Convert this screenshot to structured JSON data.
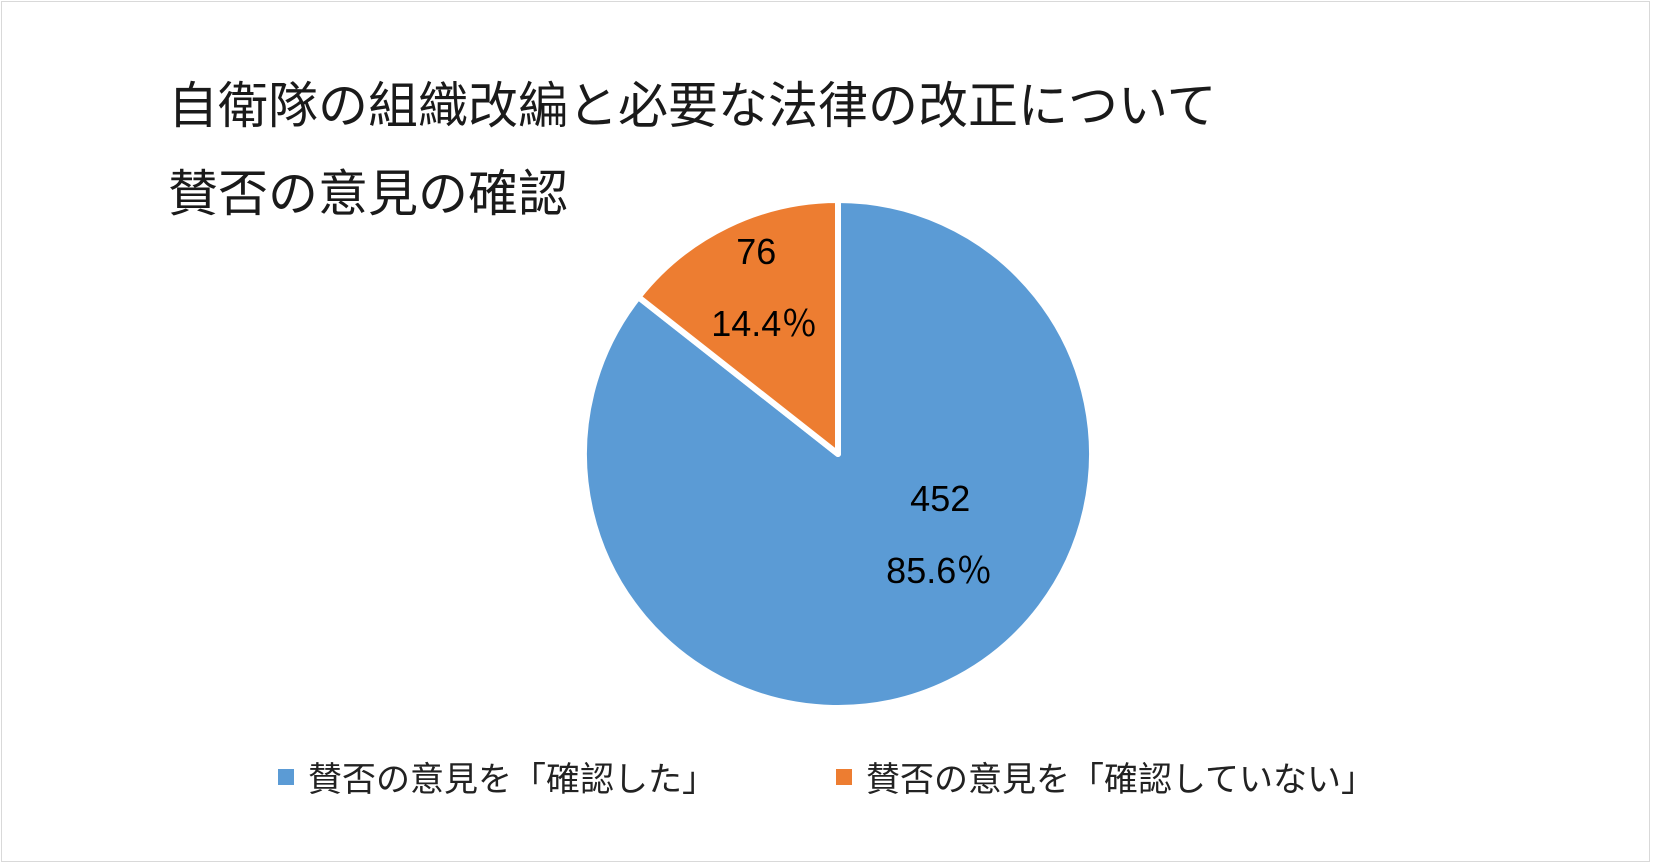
{
  "chart_data": {
    "type": "pie",
    "title_lines": [
      "自衛隊の組織改編と必要な法律の改正について",
      "賛否の意見の確認"
    ],
    "categories": [
      "賛否の意見を「確認した」",
      "賛否の意見を「確認していない」"
    ],
    "values": [
      452,
      76
    ],
    "percent_labels": [
      "85.6％",
      "14.4％"
    ],
    "value_labels": [
      "452",
      "76"
    ],
    "colors": [
      "#5b9bd5",
      "#ed7d31"
    ],
    "legend_position": "bottom",
    "start": "12 o'clock",
    "direction": "clockwise"
  }
}
